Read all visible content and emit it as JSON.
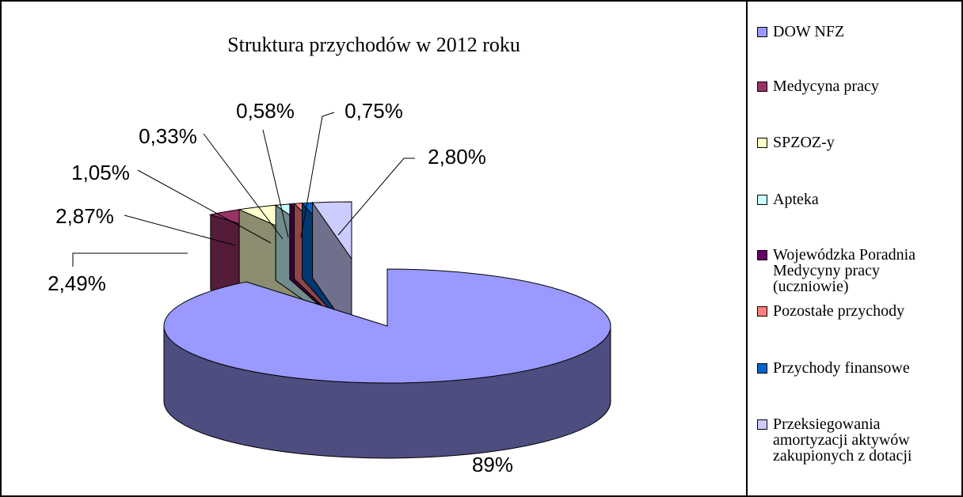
{
  "chart_data": {
    "type": "pie3d",
    "title": "Struktura przychodów w 2012 roku",
    "categories": [
      "DOW NFZ",
      "Medycyna pracy",
      "SPZOZ-y",
      "Apteka",
      "Wojewódzka Poradnia Medycyny pracy (uczniowie)",
      "Pozostałe przychody",
      "Przychody finansowe",
      "Przeksiegowania amortyzacji aktywów zakupionych z dotacji"
    ],
    "values": [
      89,
      2.49,
      2.87,
      1.05,
      0.33,
      0.58,
      0.75,
      2.8
    ],
    "value_labels": [
      "89%",
      "2,49%",
      "2,87%",
      "1,05%",
      "0,33%",
      "0,58%",
      "0,75%",
      "2,80%"
    ],
    "colors": [
      "#9999ff",
      "#993366",
      "#ffffcc",
      "#ccffff",
      "#660066",
      "#ff8080",
      "#0066cc",
      "#ccccff"
    ],
    "legend": "right"
  }
}
